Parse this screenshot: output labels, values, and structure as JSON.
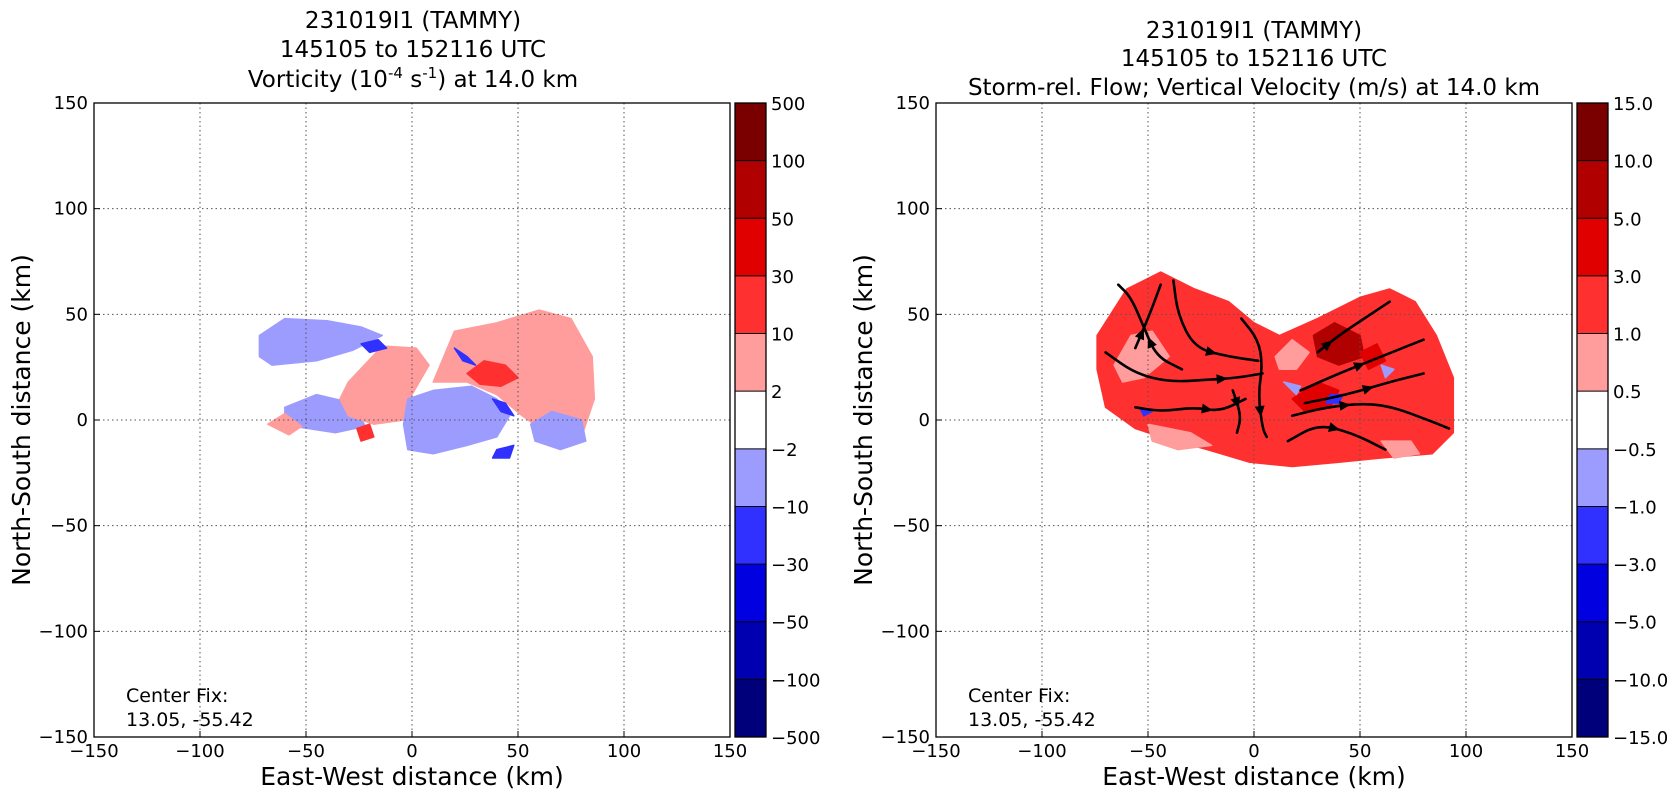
{
  "chart_data": [
    {
      "type": "heatmap",
      "title_lines": [
        "231019I1 (TAMMY)",
        "145105 to 152116 UTC"
      ],
      "title_line3": {
        "before": "Vorticity (10",
        "exp1": "-4",
        "mid": " s",
        "exp2": "-1",
        "after": ") at 14.0 km"
      },
      "xlabel": "East-West distance (km)",
      "ylabel": "North-South distance (km)",
      "xlim": [
        -150,
        150
      ],
      "ylim": [
        -150,
        150
      ],
      "xticks": [
        "−150",
        "−100",
        "−50",
        "0",
        "50",
        "100",
        "150"
      ],
      "yticks": [
        "−150",
        "−100",
        "−50",
        "0",
        "50",
        "100",
        "150"
      ],
      "grid": true,
      "annotation": [
        "Center Fix:",
        "13.05, -55.42"
      ],
      "colorbar_labels": [
        "500",
        "100",
        "50",
        "30",
        "10",
        "2",
        "−2",
        "−10",
        "−30",
        "−50",
        "−100",
        "−500"
      ],
      "colorbar_colors": [
        "#7a0000",
        "#b00000",
        "#e00000",
        "#ff3030",
        "#ff9c9c",
        "#ffffff",
        "#9c9cff",
        "#3030ff",
        "#0000e0",
        "#0000b0",
        "#00007a"
      ],
      "regions": [
        {
          "level": "neg_light",
          "poly": [
            [
              -72,
              40
            ],
            [
              -60,
              48
            ],
            [
              -40,
              47
            ],
            [
              -24,
              44
            ],
            [
              -14,
              40
            ],
            [
              -28,
              33
            ],
            [
              -45,
              28
            ],
            [
              -66,
              26
            ],
            [
              -72,
              30
            ]
          ]
        },
        {
          "level": "neg_light",
          "poly": [
            [
              -60,
              6
            ],
            [
              -45,
              12
            ],
            [
              -28,
              8
            ],
            [
              -22,
              -3
            ],
            [
              -36,
              -6
            ],
            [
              -56,
              -3
            ],
            [
              -60,
              2
            ]
          ]
        },
        {
          "level": "pos_light",
          "poly": [
            [
              -30,
              18
            ],
            [
              -14,
              35
            ],
            [
              2,
              34
            ],
            [
              8,
              26
            ],
            [
              0,
              12
            ],
            [
              -4,
              0
            ],
            [
              -18,
              -2
            ],
            [
              -30,
              2
            ],
            [
              -34,
              10
            ]
          ]
        },
        {
          "level": "neg_light",
          "poly": [
            [
              -2,
              10
            ],
            [
              10,
              14
            ],
            [
              28,
              16
            ],
            [
              40,
              10
            ],
            [
              46,
              2
            ],
            [
              40,
              -8
            ],
            [
              26,
              -12
            ],
            [
              10,
              -16
            ],
            [
              -2,
              -14
            ],
            [
              -4,
              -2
            ]
          ]
        },
        {
          "level": "pos_light",
          "poly": [
            [
              10,
              18
            ],
            [
              20,
              42
            ],
            [
              40,
              46
            ],
            [
              60,
              52
            ],
            [
              75,
              48
            ],
            [
              85,
              30
            ],
            [
              86,
              10
            ],
            [
              80,
              -8
            ],
            [
              66,
              -8
            ],
            [
              52,
              2
            ],
            [
              40,
              12
            ],
            [
              26,
              18
            ]
          ]
        },
        {
          "level": "neg_light",
          "poly": [
            [
              56,
              -2
            ],
            [
              66,
              4
            ],
            [
              80,
              0
            ],
            [
              82,
              -10
            ],
            [
              70,
              -14
            ],
            [
              58,
              -10
            ]
          ]
        },
        {
          "level": "pos_light",
          "poly": [
            [
              -68,
              -2
            ],
            [
              -58,
              -7
            ],
            [
              -52,
              -3
            ],
            [
              -60,
              3
            ]
          ]
        },
        {
          "level": "pos_med",
          "poly": [
            [
              26,
              22
            ],
            [
              34,
              28
            ],
            [
              44,
              26
            ],
            [
              50,
              20
            ],
            [
              42,
              16
            ],
            [
              32,
              17
            ]
          ]
        },
        {
          "level": "neg_med",
          "poly": [
            [
              20,
              34
            ],
            [
              26,
              30
            ],
            [
              30,
              26
            ],
            [
              24,
              28
            ]
          ]
        },
        {
          "level": "neg_med",
          "poly": [
            [
              38,
              10
            ],
            [
              44,
              8
            ],
            [
              48,
              2
            ],
            [
              42,
              4
            ]
          ]
        },
        {
          "level": "neg_med",
          "poly": [
            [
              -24,
              36
            ],
            [
              -16,
              38
            ],
            [
              -12,
              34
            ],
            [
              -20,
              32
            ]
          ]
        },
        {
          "level": "pos_med",
          "poly": [
            [
              -26,
              -4
            ],
            [
              -20,
              -2
            ],
            [
              -18,
              -8
            ],
            [
              -24,
              -10
            ]
          ]
        },
        {
          "level": "neg_med",
          "poly": [
            [
              40,
              -14
            ],
            [
              48,
              -12
            ],
            [
              46,
              -18
            ],
            [
              38,
              -18
            ]
          ]
        }
      ]
    },
    {
      "type": "heatmap",
      "title_lines": [
        "231019I1 (TAMMY)",
        "145105 to 152116 UTC",
        "Storm-rel. Flow; Vertical Velocity (m/s) at 14.0 km"
      ],
      "xlabel": "East-West distance (km)",
      "ylabel": "North-South distance (km)",
      "xlim": [
        -150,
        150
      ],
      "ylim": [
        -150,
        150
      ],
      "xticks": [
        "−150",
        "−100",
        "−50",
        "0",
        "50",
        "100",
        "150"
      ],
      "yticks": [
        "−150",
        "−100",
        "−50",
        "0",
        "50",
        "100",
        "150"
      ],
      "grid": true,
      "annotation": [
        "Center Fix:",
        "13.05, -55.42"
      ],
      "colorbar_labels": [
        "15.0",
        "10.0",
        "5.0",
        "3.0",
        "1.0",
        "0.5",
        "−0.5",
        "−1.0",
        "−3.0",
        "−5.0",
        "−10.0",
        "−15.0"
      ],
      "colorbar_colors": [
        "#7a0000",
        "#b00000",
        "#e00000",
        "#ff3030",
        "#ff9c9c",
        "#ffffff",
        "#9c9cff",
        "#3030ff",
        "#0000e0",
        "#0000b0",
        "#00007a"
      ],
      "regions": [
        {
          "level": "pos_med",
          "poly": [
            [
              -74,
              40
            ],
            [
              -60,
              62
            ],
            [
              -44,
              70
            ],
            [
              -28,
              62
            ],
            [
              -12,
              56
            ],
            [
              0,
              46
            ],
            [
              12,
              40
            ],
            [
              30,
              48
            ],
            [
              50,
              58
            ],
            [
              64,
              62
            ],
            [
              76,
              56
            ],
            [
              86,
              40
            ],
            [
              94,
              20
            ],
            [
              94,
              -6
            ],
            [
              84,
              -16
            ],
            [
              60,
              -18
            ],
            [
              40,
              -20
            ],
            [
              18,
              -22
            ],
            [
              -2,
              -20
            ],
            [
              -22,
              -14
            ],
            [
              -44,
              -8
            ],
            [
              -56,
              -4
            ],
            [
              -70,
              6
            ],
            [
              -74,
              24
            ]
          ]
        },
        {
          "level": "pos_light",
          "poly": [
            [
              -66,
              26
            ],
            [
              -58,
              40
            ],
            [
              -48,
              42
            ],
            [
              -40,
              30
            ],
            [
              -52,
              20
            ],
            [
              -62,
              18
            ]
          ]
        },
        {
          "level": "pos_light",
          "poly": [
            [
              10,
              30
            ],
            [
              18,
              38
            ],
            [
              26,
              32
            ],
            [
              20,
              24
            ],
            [
              12,
              24
            ]
          ]
        },
        {
          "level": "pos_dark",
          "poly": [
            [
              28,
              40
            ],
            [
              38,
              46
            ],
            [
              50,
              40
            ],
            [
              52,
              30
            ],
            [
              40,
              26
            ],
            [
              30,
              30
            ]
          ]
        },
        {
          "level": "pos_bright",
          "poly": [
            [
              50,
              32
            ],
            [
              58,
              36
            ],
            [
              62,
              28
            ],
            [
              54,
              24
            ]
          ]
        },
        {
          "level": "pos_bright",
          "poly": [
            [
              18,
              10
            ],
            [
              30,
              18
            ],
            [
              40,
              14
            ],
            [
              36,
              6
            ],
            [
              24,
              4
            ]
          ]
        },
        {
          "level": "neg_light",
          "poly": [
            [
              60,
              26
            ],
            [
              66,
              24
            ],
            [
              62,
              20
            ]
          ]
        },
        {
          "level": "neg_med",
          "poly": [
            [
              36,
              12
            ],
            [
              42,
              12
            ],
            [
              40,
              8
            ],
            [
              34,
              8
            ]
          ]
        },
        {
          "level": "neg_light",
          "poly": [
            [
              14,
              18
            ],
            [
              22,
              16
            ],
            [
              20,
              12
            ]
          ]
        },
        {
          "level": "neg_med",
          "poly": [
            [
              -54,
              6
            ],
            [
              -48,
              4
            ],
            [
              -52,
              2
            ]
          ]
        },
        {
          "level": "pos_light",
          "poly": [
            [
              -50,
              -2
            ],
            [
              -30,
              -6
            ],
            [
              -20,
              -12
            ],
            [
              -36,
              -14
            ],
            [
              -48,
              -10
            ]
          ]
        },
        {
          "level": "pos_light",
          "poly": [
            [
              60,
              -10
            ],
            [
              74,
              -10
            ],
            [
              78,
              -16
            ],
            [
              66,
              -18
            ]
          ]
        }
      ],
      "streamlines": [
        {
          "points": [
            [
              -56,
              34
            ],
            [
              -50,
              48
            ],
            [
              -44,
              64
            ]
          ],
          "arrow": 1
        },
        {
          "points": [
            [
              -34,
              24
            ],
            [
              -46,
              30
            ],
            [
              -52,
              44
            ],
            [
              -58,
              58
            ],
            [
              -64,
              64
            ]
          ],
          "arrow": 2
        },
        {
          "points": [
            [
              -38,
              66
            ],
            [
              -36,
              50
            ],
            [
              -28,
              34
            ],
            [
              -12,
              30
            ],
            [
              2,
              28
            ]
          ],
          "arrow": 3
        },
        {
          "points": [
            [
              -70,
              32
            ],
            [
              -56,
              22
            ],
            [
              -40,
              18
            ],
            [
              -22,
              19
            ],
            [
              -8,
              20
            ],
            [
              4,
              22
            ]
          ],
          "arrow": 4
        },
        {
          "points": [
            [
              -56,
              6
            ],
            [
              -44,
              4
            ],
            [
              -28,
              6
            ],
            [
              -16,
              4
            ],
            [
              -4,
              10
            ]
          ],
          "arrow": 3
        },
        {
          "points": [
            [
              -6,
              48
            ],
            [
              2,
              38
            ],
            [
              4,
              26
            ],
            [
              2,
              12
            ],
            [
              4,
              -4
            ],
            [
              6,
              -8
            ]
          ],
          "arrow": 4
        },
        {
          "points": [
            [
              -10,
              14
            ],
            [
              -6,
              2
            ],
            [
              -8,
              -6
            ]
          ],
          "arrow": 1
        },
        {
          "points": [
            [
              30,
              32
            ],
            [
              40,
              40
            ],
            [
              52,
              48
            ],
            [
              64,
              56
            ]
          ],
          "arrow": 1
        },
        {
          "points": [
            [
              22,
              14
            ],
            [
              40,
              22
            ],
            [
              60,
              30
            ],
            [
              80,
              38
            ]
          ],
          "arrow": 2
        },
        {
          "points": [
            [
              24,
              8
            ],
            [
              44,
              12
            ],
            [
              64,
              18
            ],
            [
              80,
              22
            ]
          ],
          "arrow": 2
        },
        {
          "points": [
            [
              18,
              2
            ],
            [
              34,
              6
            ],
            [
              52,
              8
            ],
            [
              66,
              6
            ],
            [
              82,
              0
            ],
            [
              92,
              -4
            ]
          ],
          "arrow": 2
        },
        {
          "points": [
            [
              16,
              -10
            ],
            [
              30,
              -2
            ],
            [
              46,
              -6
            ],
            [
              62,
              -14
            ]
          ],
          "arrow": 2
        }
      ]
    }
  ]
}
